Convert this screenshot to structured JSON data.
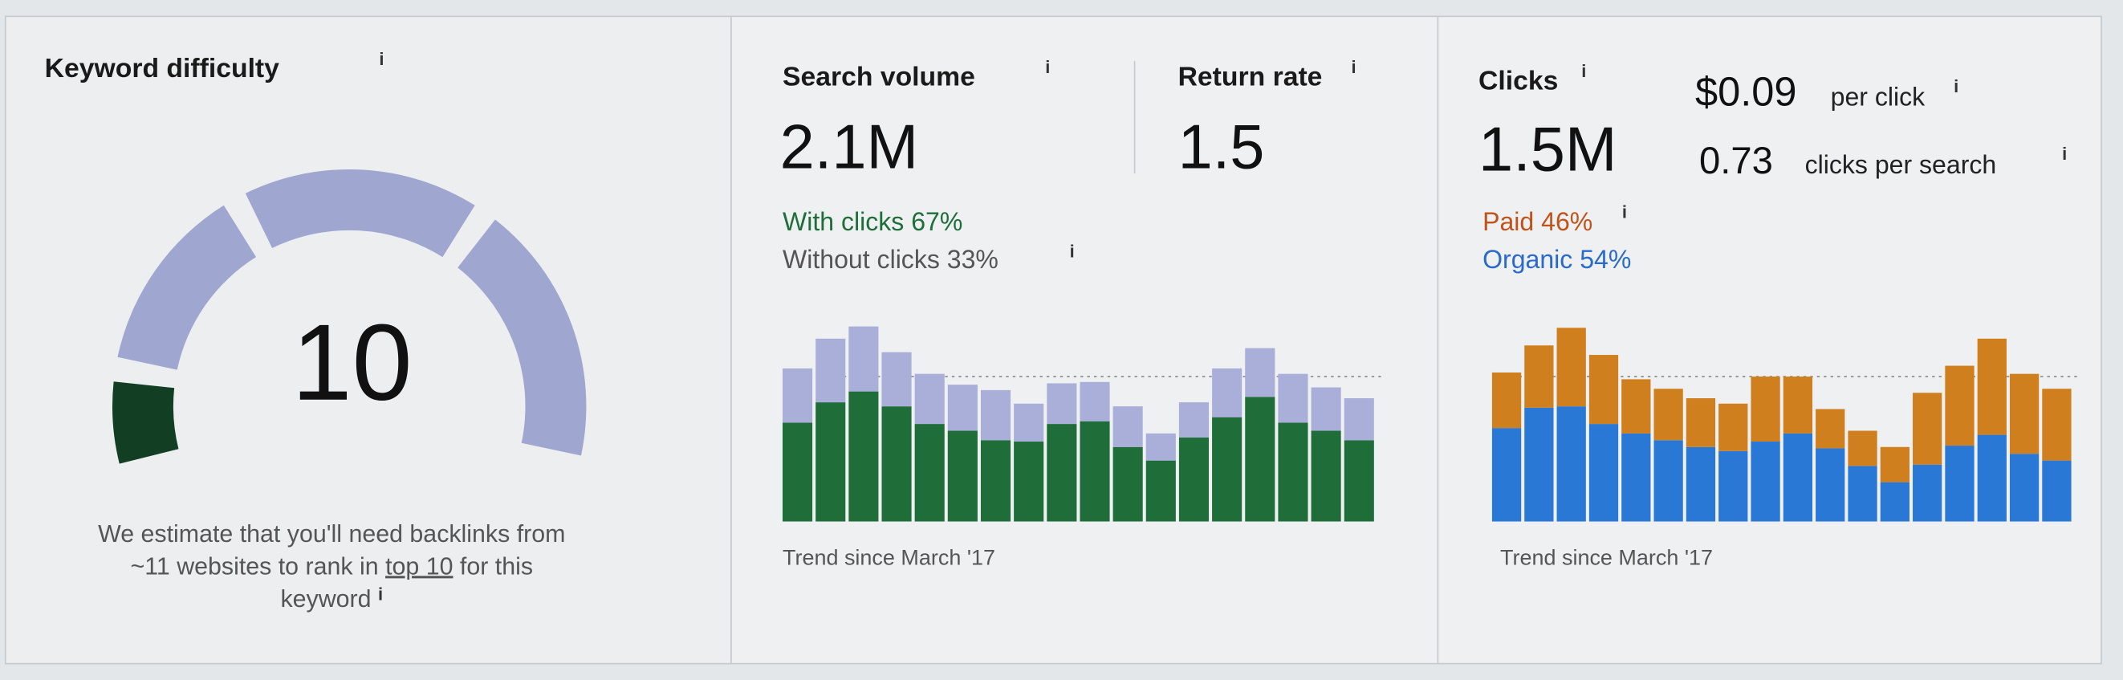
{
  "info_icon": "i",
  "keyword_difficulty": {
    "title": "Keyword difficulty",
    "score": "10",
    "note": [
      "We estimate that you'll need backlinks from",
      "~11 websites to rank in",
      "top 10",
      "for this",
      "keyword"
    ]
  },
  "search_volume": {
    "title": "Search volume",
    "value": "2.1M",
    "return_rate_title": "Return rate",
    "return_rate": "1.5",
    "with_clicks": "With clicks 67%",
    "without_clicks": "Without clicks 33%"
  },
  "clicks": {
    "title": "Clicks",
    "value": "1.5M",
    "cpc": "$0.09",
    "cpc_unit": "per click",
    "cps": "0.73",
    "cps_unit": "clicks per search",
    "paid": "Paid 46%",
    "organic": "Organic 54%"
  },
  "chart_data": [
    {
      "type": "bar",
      "stacked": true,
      "caption": "Trend since March '17",
      "categories": [
        null,
        null,
        null,
        null,
        null,
        null,
        null,
        null,
        null,
        null,
        null,
        null,
        null,
        null,
        null,
        null,
        null,
        null
      ],
      "series": [
        {
          "color": "#1f6e3a",
          "values": [
            73,
            88,
            96,
            85,
            72,
            67,
            60,
            59,
            72,
            74,
            55,
            45,
            62,
            77,
            92,
            73,
            67,
            60
          ]
        },
        {
          "color": "#a9afd8",
          "values": [
            40,
            47,
            48,
            40,
            37,
            34,
            37,
            28,
            30,
            29,
            30,
            20,
            26,
            36,
            36,
            36,
            32,
            31
          ]
        }
      ]
    },
    {
      "type": "bar",
      "stacked": true,
      "caption": "Trend since March '17",
      "categories": [
        null,
        null,
        null,
        null,
        null,
        null,
        null,
        null,
        null,
        null,
        null,
        null,
        null,
        null,
        null,
        null,
        null,
        null
      ],
      "series": [
        {
          "color": "#2a78d6",
          "values": [
            69,
            84,
            85,
            72,
            65,
            60,
            55,
            52,
            59,
            65,
            54,
            41,
            29,
            42,
            56,
            64,
            50,
            45
          ]
        },
        {
          "color": "#cf7f1e",
          "values": [
            41,
            46,
            58,
            51,
            40,
            38,
            36,
            35,
            48,
            42,
            29,
            26,
            26,
            53,
            59,
            71,
            59,
            53
          ]
        }
      ]
    }
  ]
}
